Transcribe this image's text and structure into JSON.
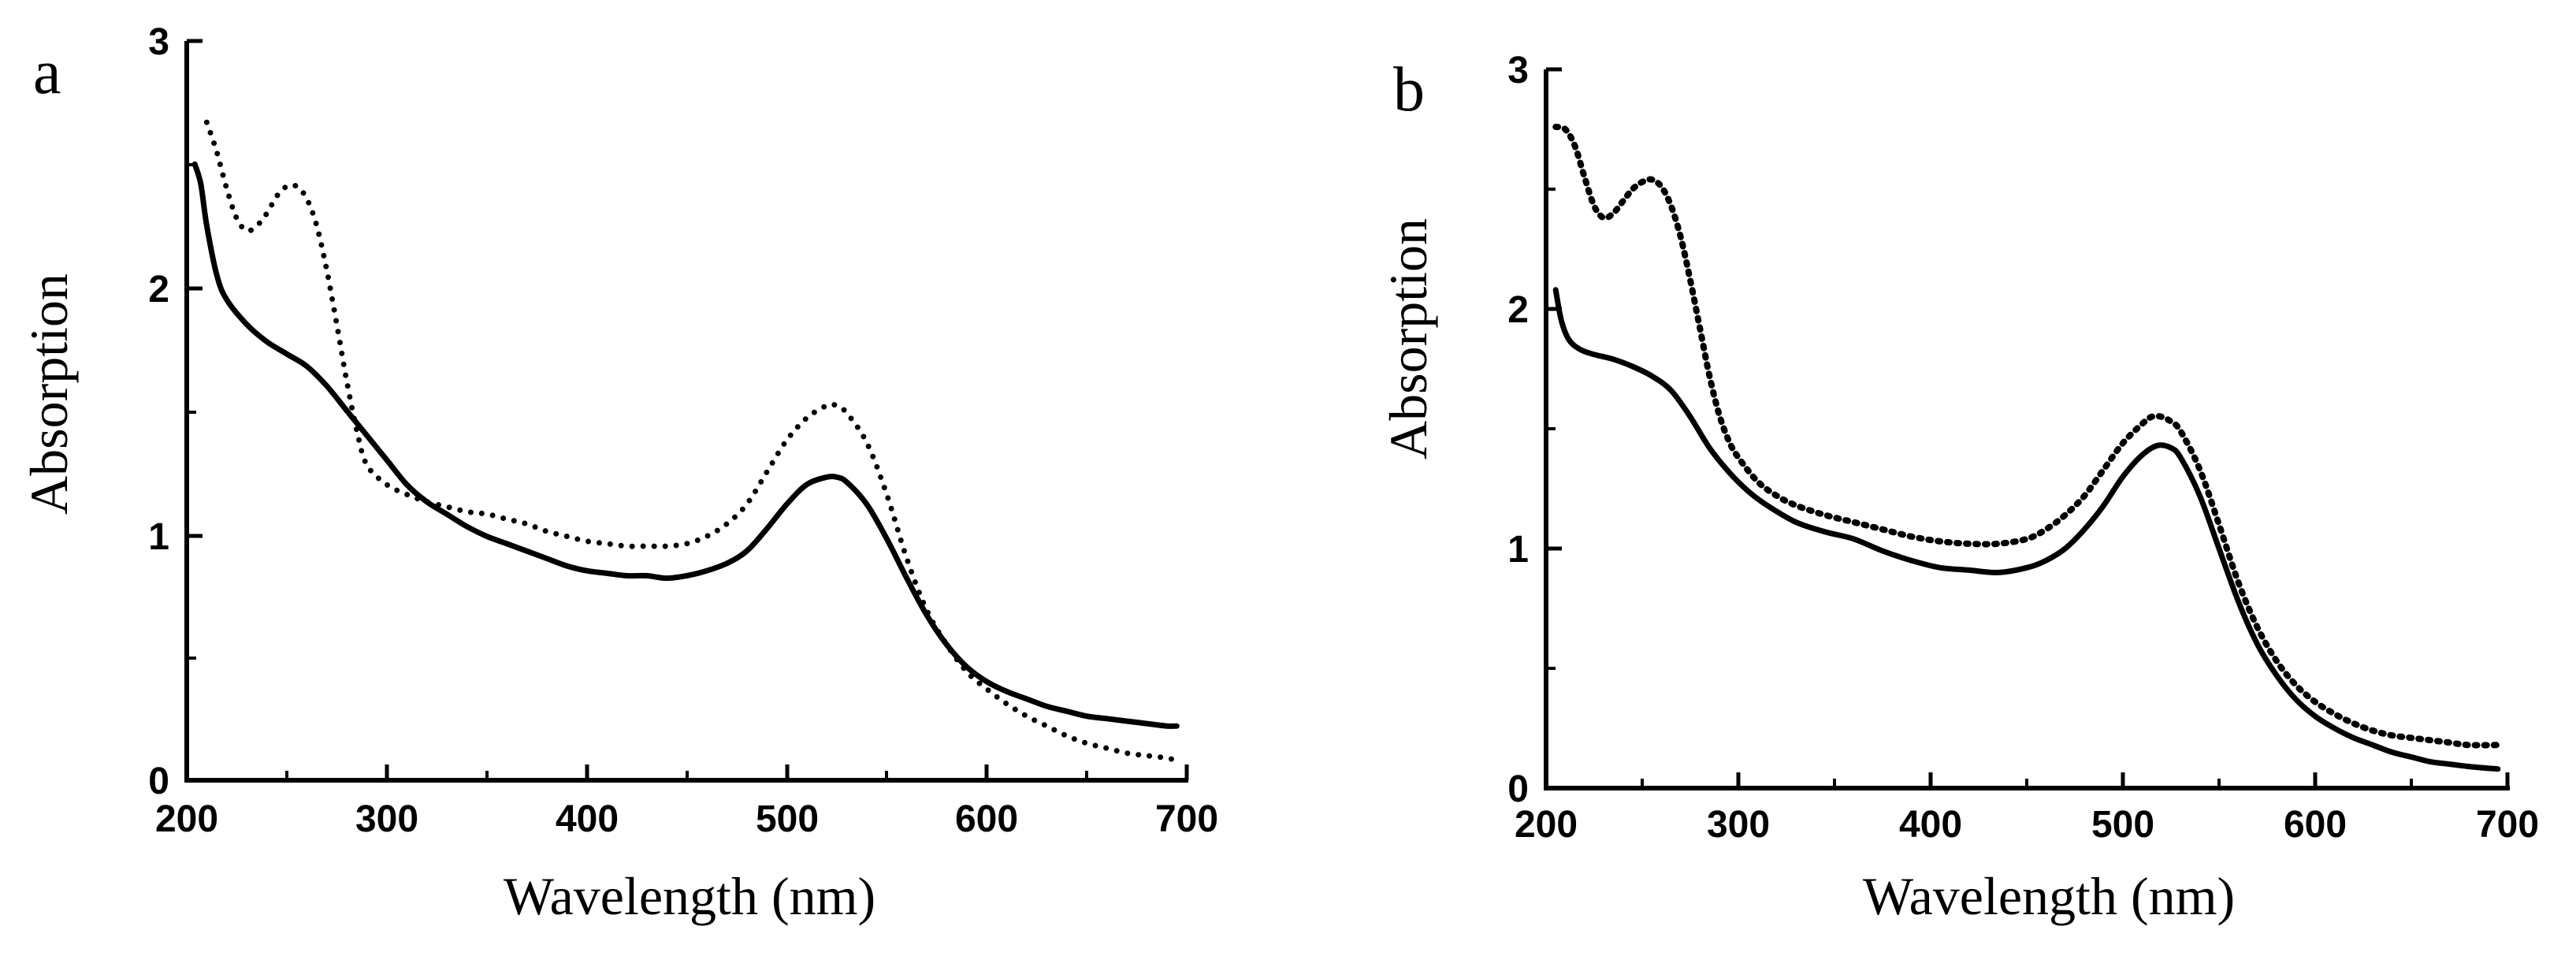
{
  "chart_data": [
    {
      "type": "line",
      "panel_label": "a",
      "xlabel": "Wavelength (nm)",
      "ylabel": "Absorption",
      "xlim": [
        200,
        700
      ],
      "ylim": [
        0,
        3
      ],
      "xticks": [
        200,
        300,
        400,
        500,
        600,
        700
      ],
      "xtick_labels": [
        "200",
        "300",
        "400",
        "500",
        "600",
        "700"
      ],
      "yticks": [
        0,
        1,
        2,
        3
      ],
      "ytick_labels": [
        "0",
        "1",
        "2",
        "3"
      ],
      "series": [
        {
          "name": "solid",
          "style": "solid",
          "x": [
            204,
            207,
            210,
            215,
            220,
            230,
            240,
            250,
            260,
            270,
            280,
            290,
            300,
            310,
            320,
            330,
            340,
            350,
            360,
            370,
            380,
            390,
            400,
            410,
            420,
            430,
            440,
            450,
            460,
            470,
            480,
            490,
            500,
            510,
            520,
            525,
            530,
            540,
            550,
            560,
            570,
            580,
            590,
            600,
            610,
            620,
            630,
            640,
            650,
            660,
            670,
            680,
            690,
            695
          ],
          "y": [
            2.5,
            2.42,
            2.25,
            2.05,
            1.95,
            1.85,
            1.78,
            1.73,
            1.68,
            1.6,
            1.5,
            1.4,
            1.3,
            1.2,
            1.13,
            1.08,
            1.03,
            0.99,
            0.96,
            0.93,
            0.9,
            0.87,
            0.85,
            0.84,
            0.83,
            0.83,
            0.82,
            0.83,
            0.85,
            0.88,
            0.93,
            1.02,
            1.12,
            1.2,
            1.23,
            1.23,
            1.21,
            1.12,
            0.98,
            0.82,
            0.67,
            0.55,
            0.46,
            0.4,
            0.36,
            0.33,
            0.3,
            0.28,
            0.26,
            0.25,
            0.24,
            0.23,
            0.22,
            0.22
          ]
        },
        {
          "name": "dotted",
          "style": "dotted",
          "x": [
            210,
            215,
            220,
            225,
            230,
            235,
            240,
            245,
            250,
            255,
            260,
            265,
            270,
            275,
            280,
            285,
            290,
            300,
            310,
            320,
            330,
            340,
            350,
            360,
            370,
            380,
            390,
            400,
            410,
            420,
            430,
            440,
            450,
            460,
            470,
            480,
            490,
            500,
            510,
            520,
            525,
            530,
            540,
            550,
            560,
            570,
            580,
            590,
            600,
            610,
            620,
            630,
            640,
            650,
            660,
            670,
            680,
            690,
            695
          ],
          "y": [
            2.67,
            2.55,
            2.4,
            2.28,
            2.23,
            2.25,
            2.3,
            2.37,
            2.41,
            2.41,
            2.36,
            2.25,
            2.07,
            1.85,
            1.62,
            1.42,
            1.28,
            1.2,
            1.16,
            1.13,
            1.11,
            1.09,
            1.08,
            1.06,
            1.04,
            1.01,
            0.99,
            0.97,
            0.96,
            0.95,
            0.95,
            0.95,
            0.96,
            0.99,
            1.04,
            1.12,
            1.25,
            1.38,
            1.47,
            1.52,
            1.52,
            1.49,
            1.37,
            1.16,
            0.9,
            0.69,
            0.55,
            0.44,
            0.37,
            0.31,
            0.26,
            0.22,
            0.18,
            0.15,
            0.13,
            0.11,
            0.1,
            0.09,
            0.08
          ]
        }
      ]
    },
    {
      "type": "line",
      "panel_label": "b",
      "xlabel": "Wavelength (nm)",
      "ylabel": "Absorption",
      "xlim": [
        200,
        700
      ],
      "ylim": [
        0,
        3
      ],
      "xticks": [
        200,
        300,
        400,
        500,
        600,
        700
      ],
      "xtick_labels": [
        "200",
        "300",
        "400",
        "500",
        "600",
        "700"
      ],
      "yticks": [
        0,
        1,
        2,
        3
      ],
      "ytick_labels": [
        "0",
        "1",
        "2",
        "3"
      ],
      "series": [
        {
          "name": "solid",
          "style": "solid",
          "x": [
            205,
            208,
            212,
            218,
            225,
            235,
            245,
            255,
            265,
            275,
            285,
            295,
            305,
            315,
            330,
            345,
            360,
            375,
            390,
            405,
            420,
            435,
            450,
            460,
            470,
            480,
            490,
            500,
            510,
            518,
            525,
            530,
            540,
            550,
            560,
            570,
            580,
            590,
            600,
            610,
            620,
            630,
            640,
            650,
            660,
            670,
            680,
            695
          ],
          "y": [
            2.08,
            1.95,
            1.87,
            1.83,
            1.81,
            1.79,
            1.76,
            1.72,
            1.66,
            1.55,
            1.42,
            1.32,
            1.24,
            1.18,
            1.11,
            1.07,
            1.04,
            0.99,
            0.95,
            0.92,
            0.91,
            0.9,
            0.92,
            0.95,
            1.0,
            1.08,
            1.18,
            1.3,
            1.39,
            1.43,
            1.42,
            1.38,
            1.22,
            1.0,
            0.78,
            0.6,
            0.47,
            0.37,
            0.3,
            0.25,
            0.21,
            0.18,
            0.15,
            0.13,
            0.11,
            0.1,
            0.09,
            0.08
          ]
        },
        {
          "name": "dashed",
          "style": "dashed",
          "x": [
            205,
            210,
            215,
            220,
            225,
            230,
            235,
            240,
            245,
            250,
            255,
            260,
            265,
            270,
            275,
            280,
            285,
            290,
            295,
            300,
            310,
            320,
            330,
            345,
            360,
            375,
            390,
            405,
            420,
            435,
            450,
            460,
            470,
            480,
            490,
            500,
            510,
            515,
            520,
            525,
            530,
            540,
            550,
            560,
            570,
            580,
            590,
            600,
            610,
            620,
            630,
            640,
            650,
            660,
            670,
            680,
            695
          ],
          "y": [
            2.76,
            2.75,
            2.68,
            2.55,
            2.43,
            2.38,
            2.4,
            2.45,
            2.5,
            2.53,
            2.54,
            2.51,
            2.43,
            2.3,
            2.12,
            1.92,
            1.72,
            1.56,
            1.45,
            1.38,
            1.28,
            1.22,
            1.18,
            1.14,
            1.11,
            1.08,
            1.05,
            1.03,
            1.02,
            1.02,
            1.04,
            1.08,
            1.14,
            1.22,
            1.33,
            1.44,
            1.52,
            1.55,
            1.55,
            1.53,
            1.49,
            1.33,
            1.1,
            0.86,
            0.67,
            0.53,
            0.43,
            0.36,
            0.31,
            0.27,
            0.24,
            0.22,
            0.21,
            0.2,
            0.19,
            0.18,
            0.18
          ]
        }
      ]
    }
  ]
}
